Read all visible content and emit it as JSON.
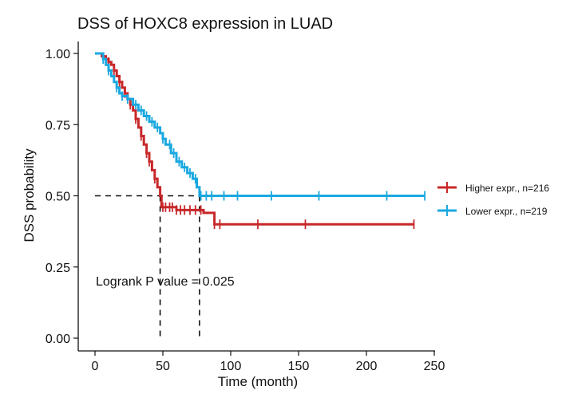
{
  "chart_data": {
    "type": "line",
    "title": "DSS of HOXC8 expression in LUAD",
    "xlabel": "Time (month)",
    "ylabel": "DSS probability",
    "xlim": [
      0,
      250
    ],
    "ylim": [
      0,
      1
    ],
    "xticks": [
      0,
      50,
      100,
      150,
      200,
      250
    ],
    "xtick_labels": [
      "0",
      "50",
      "100",
      "150",
      "200",
      "250"
    ],
    "yticks": [
      0,
      0.25,
      0.5,
      0.75,
      1.0
    ],
    "ytick_labels": [
      "0.00",
      "0.25",
      "0.50",
      "0.75",
      "1.00"
    ],
    "grid": false,
    "legend_position": "right",
    "annotation": "Logrank P value = 0.025",
    "median_survival": {
      "y": 0.5,
      "x": [
        48,
        77
      ]
    },
    "series": [
      {
        "name": "Higher expr., n=216",
        "color": "#c8282a",
        "points": [
          [
            0,
            1.0
          ],
          [
            3,
            1.0
          ],
          [
            5,
            0.99
          ],
          [
            8,
            0.98
          ],
          [
            10,
            0.97
          ],
          [
            12,
            0.96
          ],
          [
            14,
            0.94
          ],
          [
            16,
            0.92
          ],
          [
            18,
            0.9
          ],
          [
            20,
            0.88
          ],
          [
            22,
            0.86
          ],
          [
            24,
            0.84
          ],
          [
            26,
            0.82
          ],
          [
            28,
            0.8
          ],
          [
            30,
            0.77
          ],
          [
            32,
            0.74
          ],
          [
            34,
            0.71
          ],
          [
            36,
            0.68
          ],
          [
            38,
            0.65
          ],
          [
            40,
            0.62
          ],
          [
            42,
            0.59
          ],
          [
            44,
            0.56
          ],
          [
            46,
            0.53
          ],
          [
            48,
            0.5
          ],
          [
            49,
            0.46
          ],
          [
            55,
            0.46
          ],
          [
            60,
            0.45
          ],
          [
            70,
            0.45
          ],
          [
            78,
            0.45
          ],
          [
            80,
            0.44
          ],
          [
            88,
            0.4
          ],
          [
            100,
            0.4
          ],
          [
            150,
            0.4
          ],
          [
            200,
            0.4
          ],
          [
            235,
            0.4
          ]
        ],
        "censor_x": [
          10,
          14,
          18,
          22,
          26,
          30,
          34,
          38,
          40,
          44,
          50,
          52,
          55,
          57,
          60,
          63,
          66,
          70,
          74,
          78,
          88,
          92,
          120,
          155,
          235
        ]
      },
      {
        "name": "Lower expr., n=219",
        "color": "#1aa8e0",
        "points": [
          [
            0,
            1.0
          ],
          [
            4,
            1.0
          ],
          [
            6,
            0.98
          ],
          [
            8,
            0.96
          ],
          [
            10,
            0.94
          ],
          [
            12,
            0.92
          ],
          [
            14,
            0.9
          ],
          [
            16,
            0.88
          ],
          [
            18,
            0.86
          ],
          [
            20,
            0.85
          ],
          [
            24,
            0.84
          ],
          [
            28,
            0.82
          ],
          [
            32,
            0.8
          ],
          [
            36,
            0.78
          ],
          [
            40,
            0.76
          ],
          [
            44,
            0.74
          ],
          [
            48,
            0.72
          ],
          [
            50,
            0.7
          ],
          [
            52,
            0.68
          ],
          [
            56,
            0.65
          ],
          [
            60,
            0.62
          ],
          [
            64,
            0.6
          ],
          [
            68,
            0.58
          ],
          [
            72,
            0.56
          ],
          [
            75,
            0.53
          ],
          [
            77,
            0.5
          ],
          [
            80,
            0.5
          ],
          [
            100,
            0.5
          ],
          [
            150,
            0.5
          ],
          [
            200,
            0.5
          ],
          [
            243,
            0.5
          ]
        ],
        "censor_x": [
          6,
          10,
          16,
          20,
          24,
          30,
          34,
          38,
          42,
          46,
          50,
          55,
          58,
          62,
          66,
          70,
          74,
          78,
          82,
          86,
          95,
          105,
          130,
          165,
          215,
          243
        ]
      }
    ]
  }
}
